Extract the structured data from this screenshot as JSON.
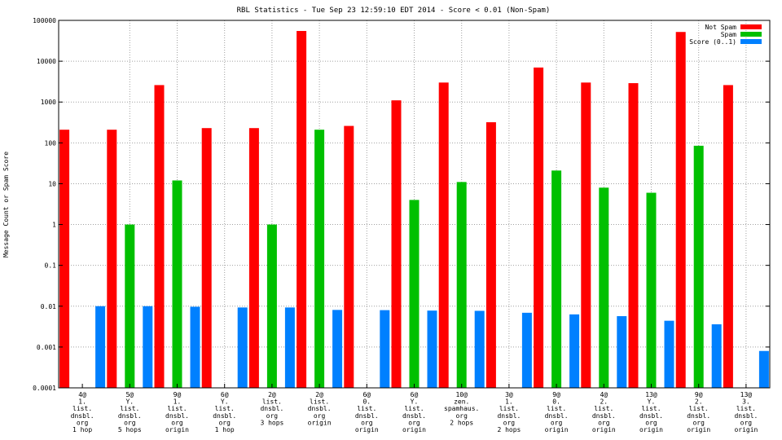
{
  "chart_data": {
    "type": "bar",
    "title": "RBL Statistics - Tue Sep 23 12:59:10 EDT 2014 - Score < 0.01 (Non-Spam)",
    "ylabel": "Message Count or Spam Score",
    "xlabel": "",
    "yscale": "log",
    "ylim": [
      0.0001,
      100000
    ],
    "y_ticks": [
      "0.0001",
      "0.001",
      "0.01",
      "0.1",
      "1",
      "10",
      "100",
      "1000",
      "10000",
      "100000"
    ],
    "grid": true,
    "legend_position": "top-right",
    "categories": [
      [
        "4@",
        "1.",
        "list.",
        "dnsbl.",
        "org",
        "1 hop"
      ],
      [
        "5@",
        "Y.",
        "list.",
        "dnsbl.",
        "org",
        "5 hops"
      ],
      [
        "9@",
        "1.",
        "list.",
        "dnsbl.",
        "org",
        "origin"
      ],
      [
        "6@",
        "Y.",
        "list.",
        "dnsbl.",
        "org",
        "1 hop"
      ],
      [
        "2@",
        "list.",
        "dnsbl.",
        "org",
        "3 hops"
      ],
      [
        "2@",
        "list.",
        "dnsbl.",
        "org",
        "origin"
      ],
      [
        "6@",
        "0.",
        "list.",
        "dnsbl.",
        "org",
        "origin"
      ],
      [
        "6@",
        "Y.",
        "list.",
        "dnsbl.",
        "org",
        "origin"
      ],
      [
        "10@",
        "zen.",
        "spamhaus.",
        "org",
        "2 hops"
      ],
      [
        "3@",
        "1.",
        "list.",
        "dnsbl.",
        "org",
        "2 hops"
      ],
      [
        "9@",
        "0.",
        "list.",
        "dnsbl.",
        "org",
        "origin"
      ],
      [
        "4@",
        "2.",
        "list.",
        "dnsbl.",
        "org",
        "origin"
      ],
      [
        "13@",
        "Y.",
        "list.",
        "dnsbl.",
        "org",
        "origin"
      ],
      [
        "9@",
        "2.",
        "list.",
        "dnsbl.",
        "org",
        "origin"
      ],
      [
        "13@",
        "3.",
        "list.",
        "dnsbl.",
        "org",
        "origin"
      ]
    ],
    "series": [
      {
        "name": "Not Spam",
        "color": "#ff0000",
        "values": [
          210,
          210,
          2600,
          230,
          230,
          55000,
          260,
          1100,
          3000,
          320,
          7000,
          3000,
          2900,
          52000,
          2600
        ]
      },
      {
        "name": "Spam",
        "color": "#00c000",
        "values": [
          null,
          1,
          12,
          null,
          1,
          210,
          null,
          4,
          11,
          null,
          21,
          8,
          6,
          85,
          null
        ]
      },
      {
        "name": "Score (0..1)",
        "color": "#0080ff",
        "values": [
          0.01,
          0.01,
          0.0097,
          0.0093,
          0.0093,
          0.0081,
          0.008,
          0.0078,
          0.0077,
          0.0069,
          0.0063,
          0.0057,
          0.0044,
          0.0036,
          0.0008
        ]
      }
    ]
  }
}
